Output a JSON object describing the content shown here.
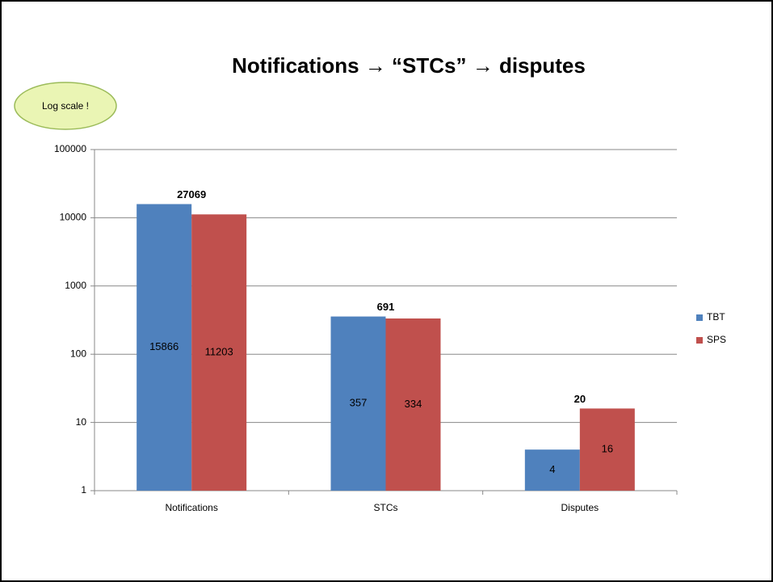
{
  "chart_data": {
    "type": "bar",
    "title": "Notifications → “STCs” → disputes",
    "annotation": "Log scale !",
    "categories": [
      "Notifications",
      "STCs",
      "Disputes"
    ],
    "series": [
      {
        "name": "TBT",
        "color": "#4f81bd",
        "values": [
          15866,
          357,
          4
        ]
      },
      {
        "name": "SPS",
        "color": "#c0504d",
        "values": [
          11203,
          334,
          16
        ]
      }
    ],
    "totals": [
      27069,
      691,
      20
    ],
    "ylim": [
      1,
      100000
    ],
    "yticks": [
      1,
      10,
      100,
      1000,
      10000,
      100000
    ],
    "log_scale": true,
    "grid": true,
    "legend": "right"
  }
}
